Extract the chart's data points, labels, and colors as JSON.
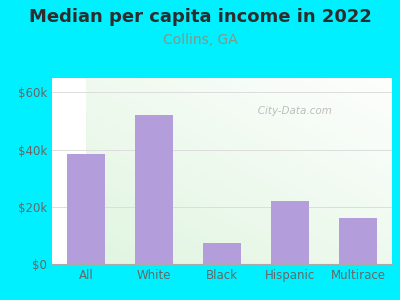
{
  "title": "Median per capita income in 2022",
  "subtitle": "Collins, GA",
  "categories": [
    "All",
    "White",
    "Black",
    "Hispanic",
    "Multirace"
  ],
  "values": [
    38500,
    52000,
    7500,
    22000,
    16000
  ],
  "bar_color": "#b39ddb",
  "title_fontsize": 13,
  "subtitle_fontsize": 10,
  "subtitle_color": "#7a9a8a",
  "title_color": "#2d2d2d",
  "tick_color": "#666666",
  "background_outer": "#00f0ff",
  "ylim": [
    0,
    65000
  ],
  "yticks": [
    0,
    20000,
    40000,
    60000
  ],
  "ytick_labels": [
    "$0",
    "$20k",
    "$40k",
    "$60k"
  ],
  "watermark": "   City-Data.com",
  "grid_color": "#dddddd"
}
